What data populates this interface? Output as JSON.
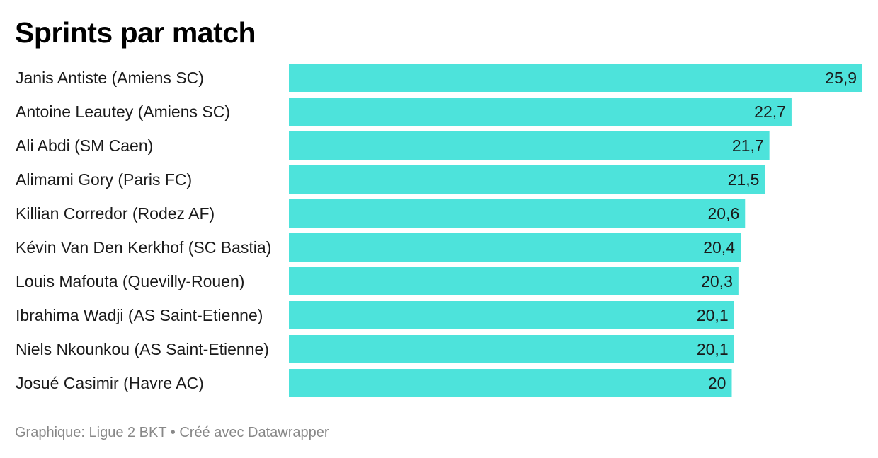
{
  "title": "Sprints par match",
  "footer": {
    "source": "Graphique: Ligue 2 BKT • Créé avec Datawrapper"
  },
  "colors": {
    "bar": "#4de3db",
    "text": "#1a1a1a",
    "footer": "#888888"
  },
  "chart_data": {
    "type": "bar",
    "orientation": "horizontal",
    "categories": [
      "Janis Antiste (Amiens SC)",
      "Antoine Leautey (Amiens SC)",
      "Ali Abdi (SM Caen)",
      "Alimami Gory (Paris FC)",
      "Killian Corredor (Rodez AF)",
      "Kévin Van Den Kerkhof (SC Bastia)",
      "Louis Mafouta (Quevilly-Rouen)",
      "Ibrahima Wadji (AS Saint-Etienne)",
      "Niels Nkounkou (AS Saint-Etienne)",
      "Josué Casimir (Havre AC)"
    ],
    "values": [
      25.9,
      22.7,
      21.7,
      21.5,
      20.6,
      20.4,
      20.3,
      20.1,
      20.1,
      20
    ],
    "value_labels": [
      "25,9",
      "22,7",
      "21,7",
      "21,5",
      "20,6",
      "20,4",
      "20,3",
      "20,1",
      "20,1",
      "20"
    ],
    "xlim": [
      0,
      25.9
    ],
    "grid": false,
    "legend": "none"
  }
}
